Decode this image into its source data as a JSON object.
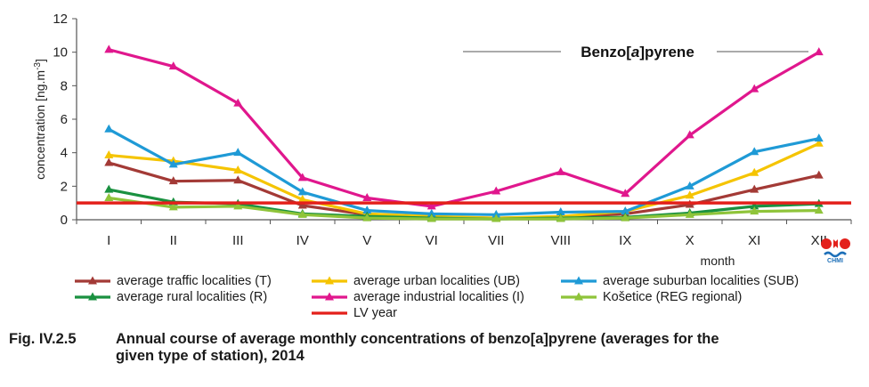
{
  "chart_data": {
    "type": "line",
    "title": "Benzo[a]pyrene",
    "title_parts": [
      "Benzo[",
      "a",
      "]pyrene"
    ],
    "xlabel": "month",
    "ylabel": "concentration [ng.m-3]",
    "ylabel_parts": [
      "concentration [ng.m",
      "-3",
      "]"
    ],
    "categories": [
      "I",
      "II",
      "III",
      "IV",
      "V",
      "VI",
      "VII",
      "VIII",
      "IX",
      "X",
      "XI",
      "XII"
    ],
    "ylim": [
      0,
      12
    ],
    "yticks": [
      0,
      2,
      4,
      6,
      8,
      10,
      12
    ],
    "grid": false,
    "legend_position": "bottom",
    "series": [
      {
        "name": "average traffic localities (T)",
        "color": "#a33a36",
        "values": [
          3.4,
          2.3,
          2.35,
          0.85,
          0.3,
          0.15,
          0.1,
          0.15,
          0.35,
          0.9,
          1.8,
          2.65
        ]
      },
      {
        "name": "average urban localities (UB)",
        "color": "#f5c400",
        "values": [
          3.85,
          3.5,
          2.95,
          1.2,
          0.35,
          0.2,
          0.1,
          0.2,
          0.5,
          1.45,
          2.8,
          4.55
        ]
      },
      {
        "name": "average suburban localities (SUB)",
        "color": "#1f9ad6",
        "values": [
          5.4,
          3.3,
          4.0,
          1.65,
          0.55,
          0.35,
          0.3,
          0.45,
          0.5,
          2.0,
          4.05,
          4.85
        ]
      },
      {
        "name": "average rural localities (R)",
        "color": "#1a9140",
        "values": [
          1.8,
          1.05,
          0.95,
          0.35,
          0.2,
          0.1,
          0.05,
          0.1,
          0.15,
          0.4,
          0.8,
          0.95
        ]
      },
      {
        "name": "average industrial localities (I)",
        "color": "#e0178d",
        "values": [
          10.15,
          9.15,
          6.95,
          2.5,
          1.3,
          0.8,
          1.7,
          2.85,
          1.55,
          5.05,
          7.8,
          10.0
        ]
      },
      {
        "name": "Košetice (REG regional)",
        "color": "#8fc43a",
        "values": [
          1.3,
          0.75,
          0.8,
          0.3,
          0.1,
          0.05,
          0.05,
          0.05,
          0.1,
          0.3,
          0.5,
          0.55
        ]
      }
    ],
    "reference_line": {
      "name": "LV year",
      "value": 1.0,
      "color": "#e3201b"
    }
  },
  "caption": {
    "number": "Fig. IV.2.5",
    "text_line1": "Annual course of average monthly concentrations of benzo[a]pyrene (averages for the",
    "text_line2": "given type of station), 2014"
  },
  "logo": {
    "text": "CHMI",
    "colors": [
      "#e3201b",
      "#1c6fb8"
    ]
  }
}
